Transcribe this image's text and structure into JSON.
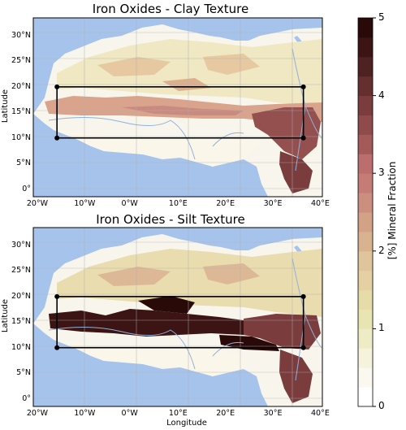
{
  "panels": [
    {
      "title": "Iron Oxides - Clay Texture",
      "ylabel": "Latitude",
      "xlabel": "",
      "lat_ticks": [
        "0°",
        "5°N",
        "10°N",
        "15°N",
        "20°N",
        "25°N",
        "30°N"
      ],
      "lon_ticks": [
        "20°W",
        "10°W",
        "0°W",
        "10°E",
        "20°E",
        "30°E",
        "40°E"
      ]
    },
    {
      "title": "Iron Oxides - Silt Texture",
      "ylabel": "Latitude",
      "xlabel": "Longitude",
      "lat_ticks": [
        "0°",
        "5°N",
        "10°N",
        "15°N",
        "20°N",
        "25°N",
        "30°N"
      ],
      "lon_ticks": [
        "20°W",
        "10°W",
        "0°W",
        "10°E",
        "20°E",
        "30°E",
        "40°E"
      ]
    }
  ],
  "colorbar": {
    "label": "[%] Mineral Fraction",
    "ticks": [
      "0",
      "1",
      "2",
      "3",
      "4",
      "5"
    ],
    "colors": [
      "#ffffff",
      "#fbf9ef",
      "#f5f3dc",
      "#eeecc6",
      "#e8e5b3",
      "#e5dca8",
      "#e4d0a2",
      "#e0c49b",
      "#d9b38f",
      "#d2a186",
      "#cc8e7e",
      "#c57c77",
      "#bc6e6e",
      "#a55a5a",
      "#8f4b4b",
      "#7a3c3c",
      "#652f2f",
      "#4f2222",
      "#3c1414",
      "#2a0909"
    ]
  },
  "map_colors": {
    "ocean": "#a6c3ec",
    "river": "#8fb0dd",
    "box": "#000000"
  },
  "study_box": {
    "lon_min": -16,
    "lon_max": 36,
    "lat_min": 10,
    "lat_max": 20
  }
}
